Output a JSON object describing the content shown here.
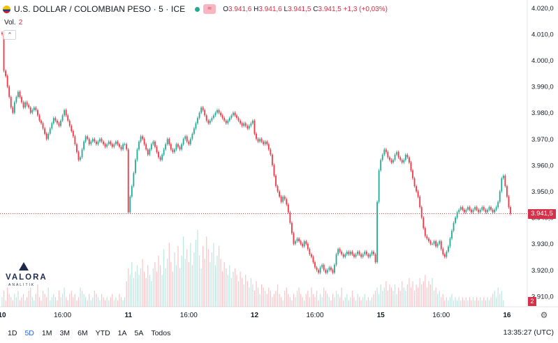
{
  "header": {
    "title": "U.S. DOLLAR / COLOMBIAN PESO · 5 · ICE",
    "badge": "≈",
    "o_label": "O",
    "o_val": "3.941,6",
    "h_label": "H",
    "h_val": "3.941,6",
    "l_label": "L",
    "l_val": "3.941,5",
    "c_label": "C",
    "c_val": "3.941,5",
    "change": "+1,3 (+0,03%)"
  },
  "volume": {
    "label": "Vol.",
    "value": "2",
    "tag": "2"
  },
  "logo": {
    "name": "VALORA",
    "sub": "ANALITIK"
  },
  "price_tag": "3.941,5",
  "toolbar": {
    "ranges": [
      "1D",
      "5D",
      "1M",
      "3M",
      "6M",
      "YTD",
      "1A",
      "5A",
      "Todos"
    ],
    "active": "5D",
    "clock": "13:35:27 (UTC)"
  },
  "colors": {
    "up": "#22ab94",
    "down": "#f23645",
    "price_line": "#f23645",
    "tag": "#d6314a"
  },
  "chart_data": {
    "type": "candlestick",
    "title": "U.S. DOLLAR / COLOMBIAN PESO · 5 · ICE",
    "ylim": [
      3906,
      4023
    ],
    "y_ticks": [
      "4.020,0",
      "4.010,0",
      "4.000,0",
      "3.990,0",
      "3.980,0",
      "3.970,0",
      "3.960,0",
      "3.950,0",
      "3.940,0",
      "3.930,0",
      "3.920,0",
      "3.910,0"
    ],
    "y_tick_values": [
      4020,
      4010,
      4000,
      3990,
      3980,
      3970,
      3960,
      3950,
      3940,
      3930,
      3920,
      3910
    ],
    "x_ticks": [
      "10",
      "16:00",
      "11",
      "16:00",
      "12",
      "16:00",
      "15",
      "16:00",
      "16"
    ],
    "x_tick_index": [
      0,
      34,
      71,
      105,
      142,
      176,
      213,
      247,
      284
    ],
    "last_price": 3941.5,
    "series_close": [
      4010,
      3996,
      3994,
      3990,
      3986,
      3982,
      3980,
      3984,
      3986,
      3988,
      3986,
      3984,
      3982,
      3984,
      3983,
      3982,
      3980,
      3981,
      3982,
      3981,
      3979,
      3977,
      3976,
      3974,
      3972,
      3970,
      3972,
      3974,
      3976,
      3978,
      3977,
      3976,
      3975,
      3977,
      3979,
      3981,
      3979,
      3977,
      3975,
      3973,
      3971,
      3968,
      3965,
      3962,
      3963,
      3966,
      3969,
      3971,
      3970,
      3968,
      3969,
      3970,
      3969,
      3968,
      3969,
      3970,
      3969,
      3968,
      3967,
      3968,
      3969,
      3968,
      3967,
      3968,
      3969,
      3968,
      3967,
      3966,
      3968,
      3968,
      3966,
      3942,
      3948,
      3952,
      3957,
      3962,
      3966,
      3969,
      3971,
      3970,
      3968,
      3966,
      3964,
      3966,
      3968,
      3969,
      3967,
      3965,
      3963,
      3962,
      3964,
      3966,
      3968,
      3970,
      3968,
      3966,
      3965,
      3966,
      3968,
      3967,
      3966,
      3968,
      3970,
      3971,
      3969,
      3968,
      3970,
      3972,
      3974,
      3976,
      3978,
      3980,
      3982,
      3981,
      3979,
      3977,
      3976,
      3977,
      3978,
      3979,
      3980,
      3981,
      3980,
      3979,
      3978,
      3977,
      3976,
      3977,
      3978,
      3979,
      3980,
      3979,
      3978,
      3977,
      3976,
      3975,
      3976,
      3975,
      3974,
      3975,
      3976,
      3977,
      3972,
      3970,
      3969,
      3970,
      3969,
      3968,
      3969,
      3968,
      3966,
      3964,
      3960,
      3956,
      3952,
      3950,
      3948,
      3946,
      3948,
      3947,
      3945,
      3942,
      3938,
      3934,
      3930,
      3931,
      3932,
      3931,
      3930,
      3929,
      3931,
      3930,
      3928,
      3926,
      3925,
      3923,
      3921,
      3920,
      3919,
      3921,
      3922,
      3920,
      3919,
      3920,
      3921,
      3920,
      3919,
      3922,
      3926,
      3928,
      3927,
      3926,
      3925,
      3926,
      3927,
      3926,
      3927,
      3926,
      3925,
      3926,
      3927,
      3926,
      3925,
      3926,
      3927,
      3926,
      3925,
      3926,
      3927,
      3926,
      3923,
      3946,
      3958,
      3962,
      3964,
      3966,
      3965,
      3963,
      3962,
      3961,
      3962,
      3964,
      3965,
      3963,
      3962,
      3961,
      3962,
      3964,
      3963,
      3961,
      3958,
      3955,
      3952,
      3950,
      3948,
      3944,
      3940,
      3936,
      3933,
      3932,
      3931,
      3930,
      3930,
      3931,
      3929,
      3930,
      3931,
      3928,
      3926,
      3925,
      3927,
      3929,
      3932,
      3935,
      3938,
      3940,
      3942,
      3943,
      3944,
      3943,
      3942,
      3943,
      3944,
      3943,
      3942,
      3943,
      3944,
      3943,
      3942,
      3943,
      3944,
      3943,
      3942,
      3943,
      3944,
      3943,
      3942,
      3943,
      3944,
      3946,
      3950,
      3955,
      3956,
      3952,
      3948,
      3944,
      3941.5
    ],
    "series_volume": [
      3,
      5,
      2,
      6,
      4,
      3,
      2,
      4,
      3,
      5,
      2,
      3,
      4,
      2,
      3,
      5,
      6,
      3,
      2,
      4,
      7,
      3,
      2,
      5,
      4,
      3,
      6,
      2,
      3,
      4,
      3,
      2,
      5,
      3,
      4,
      6,
      3,
      2,
      4,
      5,
      3,
      4,
      2,
      3,
      6,
      5,
      4,
      3,
      2,
      4,
      2,
      3,
      5,
      4,
      3,
      2,
      4,
      3,
      2,
      3,
      2,
      3,
      4,
      2,
      3,
      2,
      4,
      3,
      2,
      3,
      8,
      12,
      10,
      14,
      9,
      11,
      13,
      10,
      12,
      15,
      11,
      9,
      13,
      10,
      8,
      12,
      14,
      11,
      16,
      13,
      10,
      18,
      12,
      15,
      20,
      14,
      11,
      17,
      13,
      19,
      12,
      16,
      22,
      15,
      18,
      14,
      20,
      13,
      17,
      21,
      24,
      16,
      12,
      19,
      15,
      22,
      18,
      14,
      17,
      20,
      13,
      16,
      19,
      15,
      11,
      14,
      12,
      10,
      13,
      9,
      11,
      12,
      10,
      8,
      11,
      9,
      7,
      10,
      8,
      6,
      9,
      7,
      5,
      8,
      6,
      4,
      7,
      6,
      5,
      4,
      6,
      5,
      3,
      4,
      5,
      7,
      4,
      3,
      2,
      5,
      6,
      4,
      3,
      2,
      4,
      3,
      5,
      6,
      4,
      3,
      2,
      4,
      5,
      3,
      6,
      4,
      3,
      5,
      2,
      4,
      3,
      6,
      5,
      4,
      3,
      2,
      4,
      3,
      5,
      4,
      3,
      6,
      2,
      3,
      4,
      2,
      3,
      5,
      3,
      2,
      4,
      3,
      2,
      3,
      4,
      2,
      3,
      2,
      3,
      4,
      5,
      6,
      4,
      7,
      5,
      6,
      8,
      5,
      7,
      6,
      5,
      7,
      4,
      6,
      5,
      8,
      6,
      5,
      7,
      9,
      6,
      8,
      5,
      7,
      6,
      9,
      7,
      8,
      10,
      6,
      8,
      7,
      9,
      5,
      6,
      4,
      5,
      3,
      4,
      2,
      3,
      2,
      3,
      4,
      2,
      3,
      2,
      3,
      2,
      3,
      2,
      3,
      2,
      3,
      2,
      3,
      2,
      3,
      2,
      3,
      2,
      3,
      2,
      3,
      2,
      3,
      4,
      5,
      3,
      6,
      4,
      5,
      2
    ]
  }
}
